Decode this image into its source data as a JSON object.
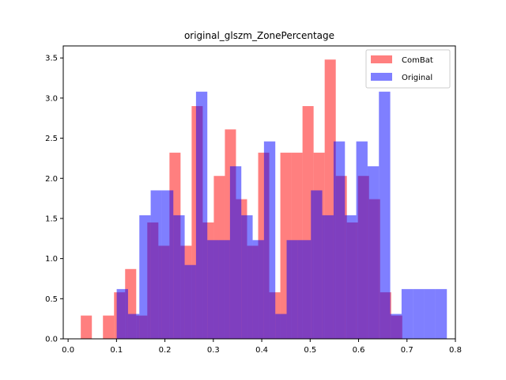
{
  "chart_data": {
    "type": "histogram",
    "title": "original_glszm_ZonePercentage",
    "xlabel": "",
    "ylabel": "",
    "xlim": [
      -0.01,
      0.8
    ],
    "ylim": [
      0,
      3.65
    ],
    "xticks": [
      0.0,
      0.1,
      0.2,
      0.3,
      0.4,
      0.5,
      0.6,
      0.7,
      0.8
    ],
    "xtick_labels": [
      "0.0",
      "0.1",
      "0.2",
      "0.3",
      "0.4",
      "0.5",
      "0.6",
      "0.7",
      "0.8"
    ],
    "yticks": [
      0.0,
      0.5,
      1.0,
      1.5,
      2.0,
      2.5,
      3.0,
      3.5
    ],
    "ytick_labels": [
      "0.0",
      "0.5",
      "1.0",
      "1.5",
      "2.0",
      "2.5",
      "3.0",
      "3.5"
    ],
    "grid": false,
    "legend_position": "top-right",
    "series": [
      {
        "name": "ComBat",
        "color": "#ff0000",
        "alpha": 0.5,
        "bin_edges": [
          0.0262,
          0.0491,
          0.072,
          0.0949,
          0.1178,
          0.1407,
          0.1636,
          0.1865,
          0.2094,
          0.2323,
          0.2552,
          0.2781,
          0.301,
          0.3239,
          0.3468,
          0.3697,
          0.3926,
          0.4155,
          0.4384,
          0.4613,
          0.4842,
          0.5071,
          0.53,
          0.5529,
          0.5758,
          0.5987,
          0.6216,
          0.6445,
          0.6674,
          0.6903
        ],
        "values": [
          0.29,
          0.0,
          0.29,
          0.58,
          0.87,
          0.29,
          1.45,
          1.16,
          2.32,
          1.16,
          2.9,
          1.45,
          2.03,
          2.61,
          1.74,
          1.16,
          2.32,
          0.58,
          2.32,
          2.32,
          2.9,
          2.32,
          3.48,
          2.03,
          1.45,
          2.03,
          1.74,
          0.58,
          0.29
        ]
      },
      {
        "name": "Original",
        "color": "#0000ff",
        "alpha": 0.5,
        "bin_edges": [
          0.1004,
          0.1238,
          0.1472,
          0.1706,
          0.194,
          0.2174,
          0.2408,
          0.2642,
          0.2876,
          0.311,
          0.3344,
          0.3578,
          0.3812,
          0.4046,
          0.428,
          0.4514,
          0.4748,
          0.5016,
          0.525,
          0.5484,
          0.5718,
          0.5952,
          0.6186,
          0.642,
          0.6654,
          0.6888,
          0.7122,
          0.7356,
          0.759,
          0.7824
        ],
        "values": [
          0.62,
          0.31,
          1.54,
          1.85,
          1.85,
          1.54,
          0.92,
          3.08,
          1.23,
          1.23,
          2.15,
          1.54,
          1.23,
          2.46,
          0.31,
          1.23,
          1.23,
          1.85,
          1.54,
          2.46,
          1.54,
          2.46,
          2.15,
          3.08,
          0.31,
          0.62,
          0.62,
          0.62,
          0.62
        ]
      }
    ]
  }
}
